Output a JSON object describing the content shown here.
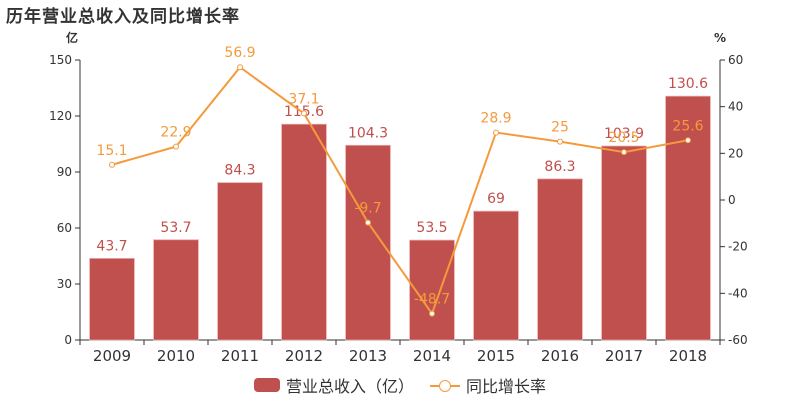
{
  "title": "历年营业总收入及同比增长率",
  "left_axis": {
    "unit": "亿",
    "ticks": [
      "150",
      "120",
      "90",
      "60",
      "30",
      "0"
    ]
  },
  "right_axis": {
    "unit": "%",
    "ticks": [
      "60",
      "40",
      "20",
      "0",
      "-20",
      "-40",
      "-60"
    ]
  },
  "legend": {
    "bar_label": "营业总收入（亿）",
    "line_label": "同比增长率"
  },
  "colors": {
    "bar": "#c0504d",
    "line": "#f59a3c"
  },
  "chart_data": {
    "type": "bar+line",
    "title": "历年营业总收入及同比增长率",
    "categories": [
      "2009",
      "2010",
      "2011",
      "2012",
      "2013",
      "2014",
      "2015",
      "2016",
      "2017",
      "2018"
    ],
    "series": [
      {
        "name": "营业总收入（亿）",
        "type": "bar",
        "axis": "left",
        "values": [
          43.7,
          53.7,
          84.3,
          115.6,
          104.3,
          53.5,
          69,
          86.3,
          103.9,
          130.6
        ]
      },
      {
        "name": "同比增长率",
        "type": "line",
        "axis": "right",
        "values": [
          15.1,
          22.9,
          56.9,
          37.1,
          -9.7,
          -48.7,
          28.9,
          25,
          20.5,
          25.6
        ]
      }
    ],
    "ylabel_left": "亿",
    "ylim_left": [
      0,
      150
    ],
    "ylabel_right": "%",
    "ylim_right": [
      -60,
      60
    ],
    "grid": false,
    "legend_position": "bottom"
  }
}
